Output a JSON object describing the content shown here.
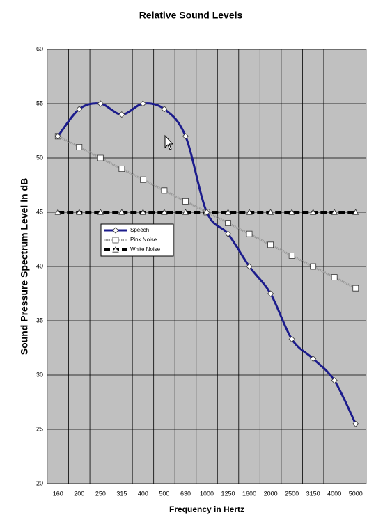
{
  "chart_data": {
    "type": "line",
    "title": "Relative Sound Levels",
    "x_label": "Frequency in Hertz",
    "y_label": "Sound Pressure Spectrum Level in dB",
    "categories": [
      "160",
      "200",
      "250",
      "315",
      "400",
      "500",
      "630",
      "1000",
      "1250",
      "1600",
      "2000",
      "2500",
      "3150",
      "4000",
      "5000"
    ],
    "series": [
      {
        "name": "Speech",
        "color": "#1c1c8c",
        "marker": "diamond",
        "smooth": true,
        "dash": false,
        "values": [
          52,
          54.5,
          55,
          54,
          55,
          54.5,
          52,
          45,
          43,
          40,
          37.5,
          33.3,
          31.5,
          29.5,
          25.5
        ]
      },
      {
        "name": "Pink Noise",
        "color": "#9a9a9a",
        "marker": "square",
        "smooth": false,
        "dash": false,
        "values": [
          52,
          51,
          50,
          49,
          48,
          47,
          46,
          45,
          44,
          43,
          42,
          41,
          40,
          39,
          38
        ]
      },
      {
        "name": "White Noise",
        "color": "#000000",
        "marker": "triangle",
        "smooth": false,
        "dash": true,
        "values": [
          45,
          45,
          45,
          45,
          45,
          45,
          45,
          45,
          45,
          45,
          45,
          45,
          45,
          45,
          45
        ]
      }
    ],
    "ylim": [
      20,
      60
    ],
    "yticks": [
      20,
      25,
      30,
      35,
      40,
      45,
      50,
      55,
      60
    ],
    "grid": true,
    "plot_background": "#c0c0c0",
    "legend": "left"
  }
}
